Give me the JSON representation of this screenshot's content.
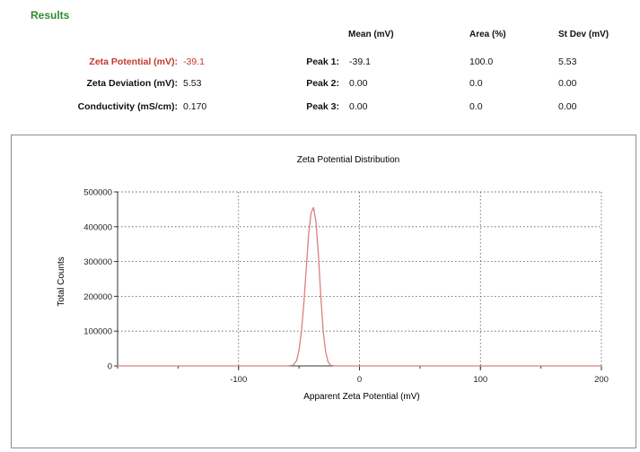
{
  "results": {
    "title": "Results",
    "summary": [
      {
        "label": "Zeta Potential (mV):",
        "value": "-39.1"
      },
      {
        "label": "Zeta Deviation (mV):",
        "value": "5.53"
      },
      {
        "label": "Conductivity (mS/cm):",
        "value": "0.170"
      }
    ],
    "peaks_table": {
      "headers": [
        "Mean (mV)",
        "Area (%)",
        "St Dev (mV)"
      ],
      "rows": [
        {
          "label": "Peak 1:",
          "mean": "-39.1",
          "area": "100.0",
          "stdev": "5.53"
        },
        {
          "label": "Peak 2:",
          "mean": "0.00",
          "area": "0.0",
          "stdev": "0.00"
        },
        {
          "label": "Peak 3:",
          "mean": "0.00",
          "area": "0.0",
          "stdev": "0.00"
        }
      ]
    }
  },
  "colors": {
    "results_title": "#2e8b2e",
    "highlight_text": "#c0392b",
    "series_line": "#d98080",
    "grid": "#555555"
  },
  "chart_data": {
    "type": "line",
    "title": "Zeta Potential Distribution",
    "xlabel": "Apparent Zeta Potential (mV)",
    "ylabel": "Total Counts",
    "xlim": [
      -200,
      200
    ],
    "ylim": [
      0,
      500000
    ],
    "xticks": [
      -100,
      0,
      100,
      200
    ],
    "yticks": [
      0,
      100000,
      200000,
      300000,
      400000,
      500000
    ],
    "grid": true,
    "series": [
      {
        "x": [
          -200,
          -60,
          -55,
          -52,
          -50,
          -48,
          -46,
          -44,
          -42,
          -40,
          -38,
          -36,
          -34,
          -32,
          -30,
          -28,
          -26,
          -24,
          -20,
          200
        ],
        "y": [
          0,
          0,
          2000,
          15000,
          45000,
          100000,
          180000,
          280000,
          380000,
          440000,
          455000,
          415000,
          320000,
          200000,
          100000,
          40000,
          12000,
          2000,
          0,
          0
        ]
      }
    ]
  }
}
